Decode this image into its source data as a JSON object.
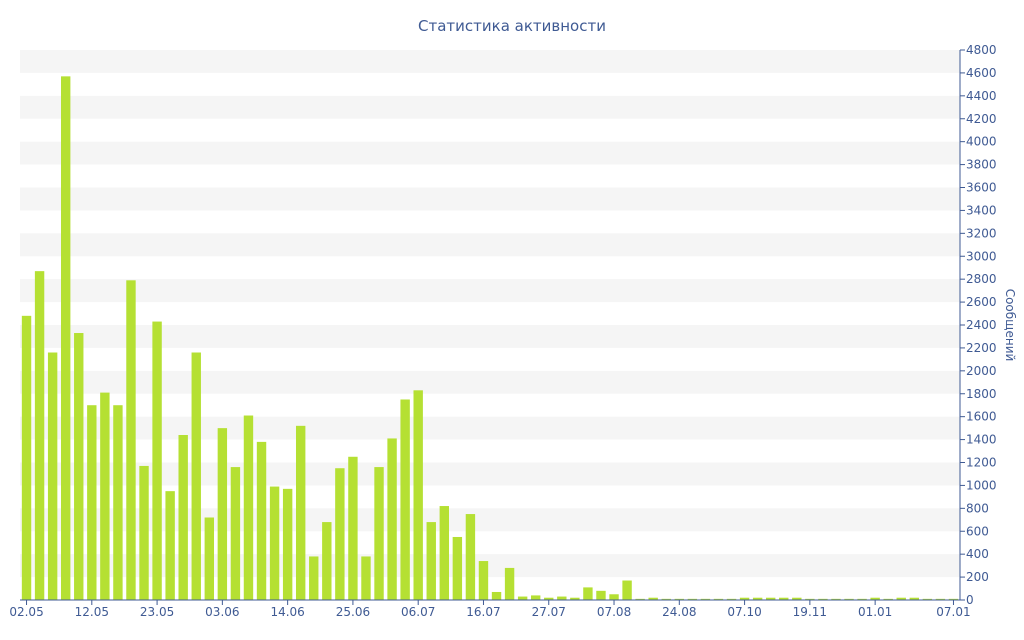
{
  "chart_data": {
    "type": "bar",
    "title": "Статистика активности",
    "xlabel": "",
    "ylabel": "Сообщений",
    "ylim": [
      0,
      4800
    ],
    "y_ticks": [
      0,
      200,
      400,
      600,
      800,
      1000,
      1200,
      1400,
      1600,
      1800,
      2000,
      2200,
      2400,
      2600,
      2800,
      3000,
      3200,
      3400,
      3600,
      3800,
      4000,
      4200,
      4400,
      4600,
      4800
    ],
    "x_tick_labels": [
      "02.05",
      "12.05",
      "23.05",
      "03.06",
      "14.06",
      "25.06",
      "06.07",
      "16.07",
      "27.07",
      "07.08",
      "24.08",
      "07.10",
      "19.11",
      "01.01",
      "07.01"
    ],
    "x_tick_bar_index": [
      0,
      5,
      10,
      15,
      20,
      25,
      30,
      35,
      40,
      45,
      50,
      55,
      60,
      65,
      71
    ],
    "grid": "horizontal bands",
    "y_axis_position": "right",
    "bar_color": "#b5e033",
    "values": [
      2480,
      2870,
      2160,
      4570,
      2330,
      1700,
      1810,
      1700,
      2790,
      1170,
      2430,
      950,
      1440,
      2160,
      720,
      1500,
      1160,
      1610,
      1380,
      990,
      970,
      1520,
      380,
      680,
      1150,
      1250,
      380,
      1160,
      1410,
      1750,
      1830,
      680,
      820,
      550,
      750,
      340,
      70,
      280,
      30,
      40,
      20,
      30,
      20,
      110,
      80,
      50,
      170,
      10,
      20,
      10,
      10,
      10,
      10,
      10,
      10,
      20,
      20,
      20,
      20,
      20,
      10,
      10,
      10,
      10,
      10,
      20,
      10,
      20,
      20,
      10,
      10,
      10
    ]
  }
}
